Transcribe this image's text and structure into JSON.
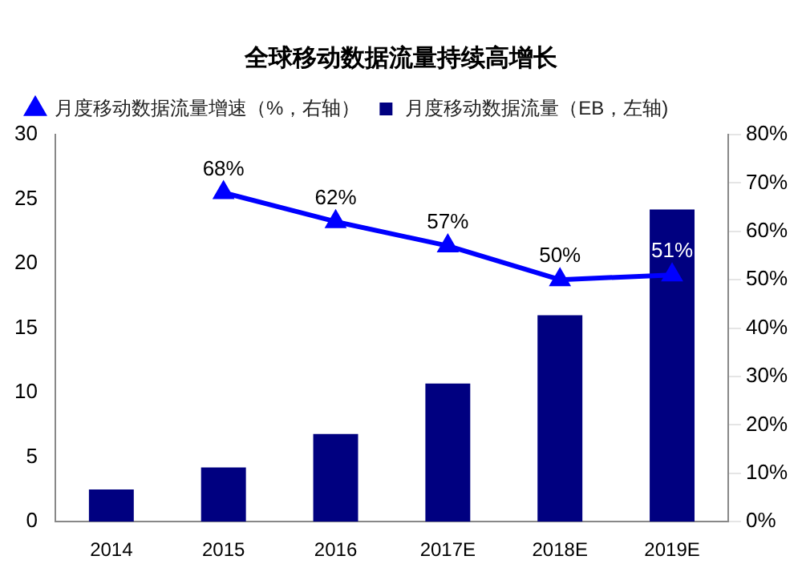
{
  "chart_data": {
    "type": "bar",
    "title": "全球移动数据流量持续高增长",
    "categories": [
      "2014",
      "2015",
      "2016",
      "2017E",
      "2018E",
      "2019E"
    ],
    "series": [
      {
        "name": "月度移动数据流量（EB，左轴)",
        "color": "#000080",
        "values": [
          2.5,
          4.2,
          6.8,
          10.7,
          16,
          24.2
        ]
      },
      {
        "name": "月度移动数据流量增速（%，右轴）",
        "type": "line",
        "axis": "y2",
        "color": "#0000ff",
        "values": [
          null,
          68,
          62,
          57,
          50,
          51
        ],
        "value_labels": [
          null,
          "68%",
          "62%",
          "57%",
          "50%",
          "51%"
        ]
      }
    ],
    "ylim": [
      0,
      30
    ],
    "yticks": [
      0,
      5,
      10,
      15,
      20,
      25,
      30
    ],
    "y2lim": [
      0,
      80
    ],
    "y2ticks": [
      {
        "value": 0,
        "label": "0%"
      },
      {
        "value": 10,
        "label": "10%"
      },
      {
        "value": 20,
        "label": "20%"
      },
      {
        "value": 30,
        "label": "30%"
      },
      {
        "value": 40,
        "label": "40%"
      },
      {
        "value": 50,
        "label": "50%"
      },
      {
        "value": 60,
        "label": "60%"
      },
      {
        "value": 70,
        "label": "70%"
      },
      {
        "value": 80,
        "label": "80%"
      }
    ],
    "grid": false,
    "legend": "top left",
    "marker": "triangle",
    "line_style": "solid"
  }
}
